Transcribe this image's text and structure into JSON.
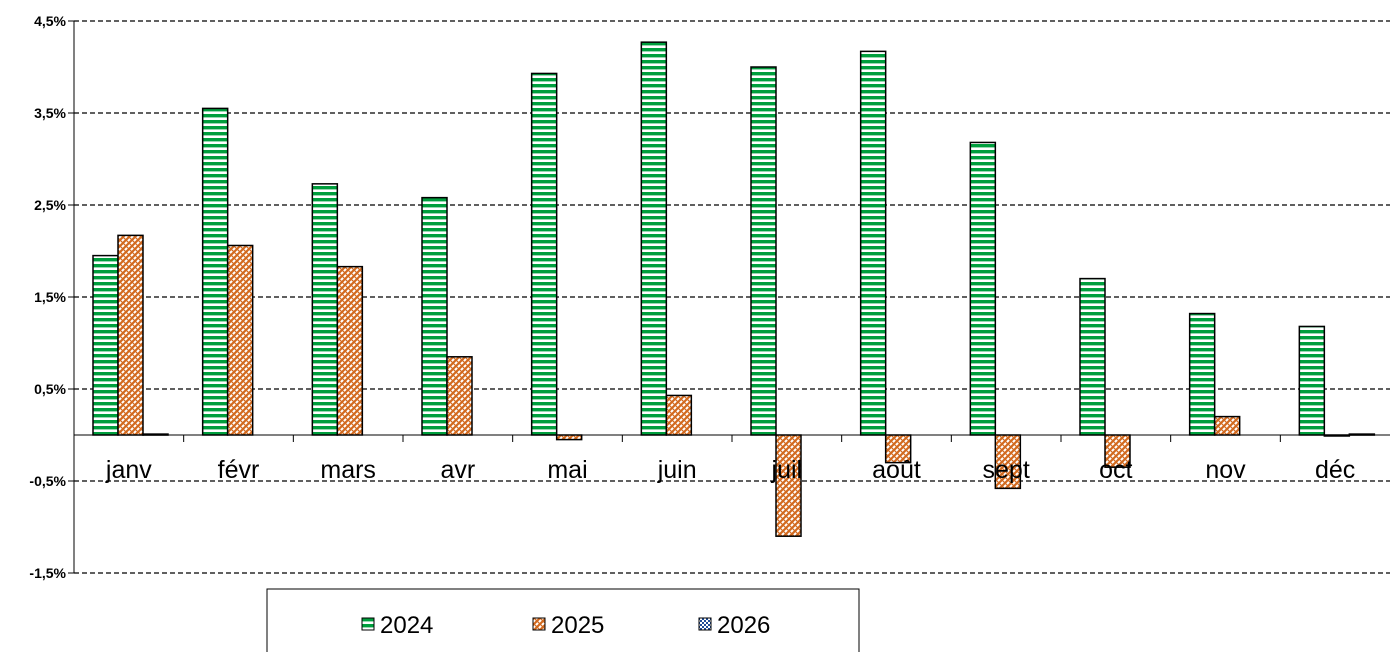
{
  "chart_data": {
    "type": "bar",
    "categories": [
      "janv",
      "févr",
      "mars",
      "avr",
      "mai",
      "juin",
      "juil",
      "août",
      "sept",
      "oct",
      "nov",
      "déc"
    ],
    "series": [
      {
        "name": "2024",
        "values": [
          1.95,
          3.55,
          2.73,
          2.58,
          3.93,
          4.27,
          4.0,
          4.17,
          3.18,
          1.7,
          1.32,
          1.18
        ],
        "color": "#009E3D",
        "pattern": "horizontal-stripes"
      },
      {
        "name": "2025",
        "values": [
          2.17,
          2.06,
          1.83,
          0.85,
          -0.05,
          0.43,
          -1.1,
          -0.3,
          -0.58,
          -0.35,
          0.2,
          0.0
        ],
        "color": "#D2691E",
        "pattern": "diagonal-crosshatch"
      },
      {
        "name": "2026",
        "values": [
          0.01,
          null,
          null,
          null,
          null,
          null,
          null,
          null,
          null,
          null,
          null,
          0.01
        ],
        "color": "#1F4E9A",
        "pattern": "checker"
      }
    ],
    "y_ticks": [
      "4,5%",
      "3,5%",
      "2,5%",
      "1,5%",
      "0,5%",
      "-0,5%",
      "-1,5%"
    ],
    "y_tick_values": [
      4.5,
      3.5,
      2.5,
      1.5,
      0.5,
      -0.5,
      -1.5
    ],
    "ylim": [
      -1.5,
      4.5
    ],
    "grid": "dashed horizontal",
    "legend_position": "bottom",
    "title": "",
    "xlabel": "",
    "ylabel": ""
  }
}
